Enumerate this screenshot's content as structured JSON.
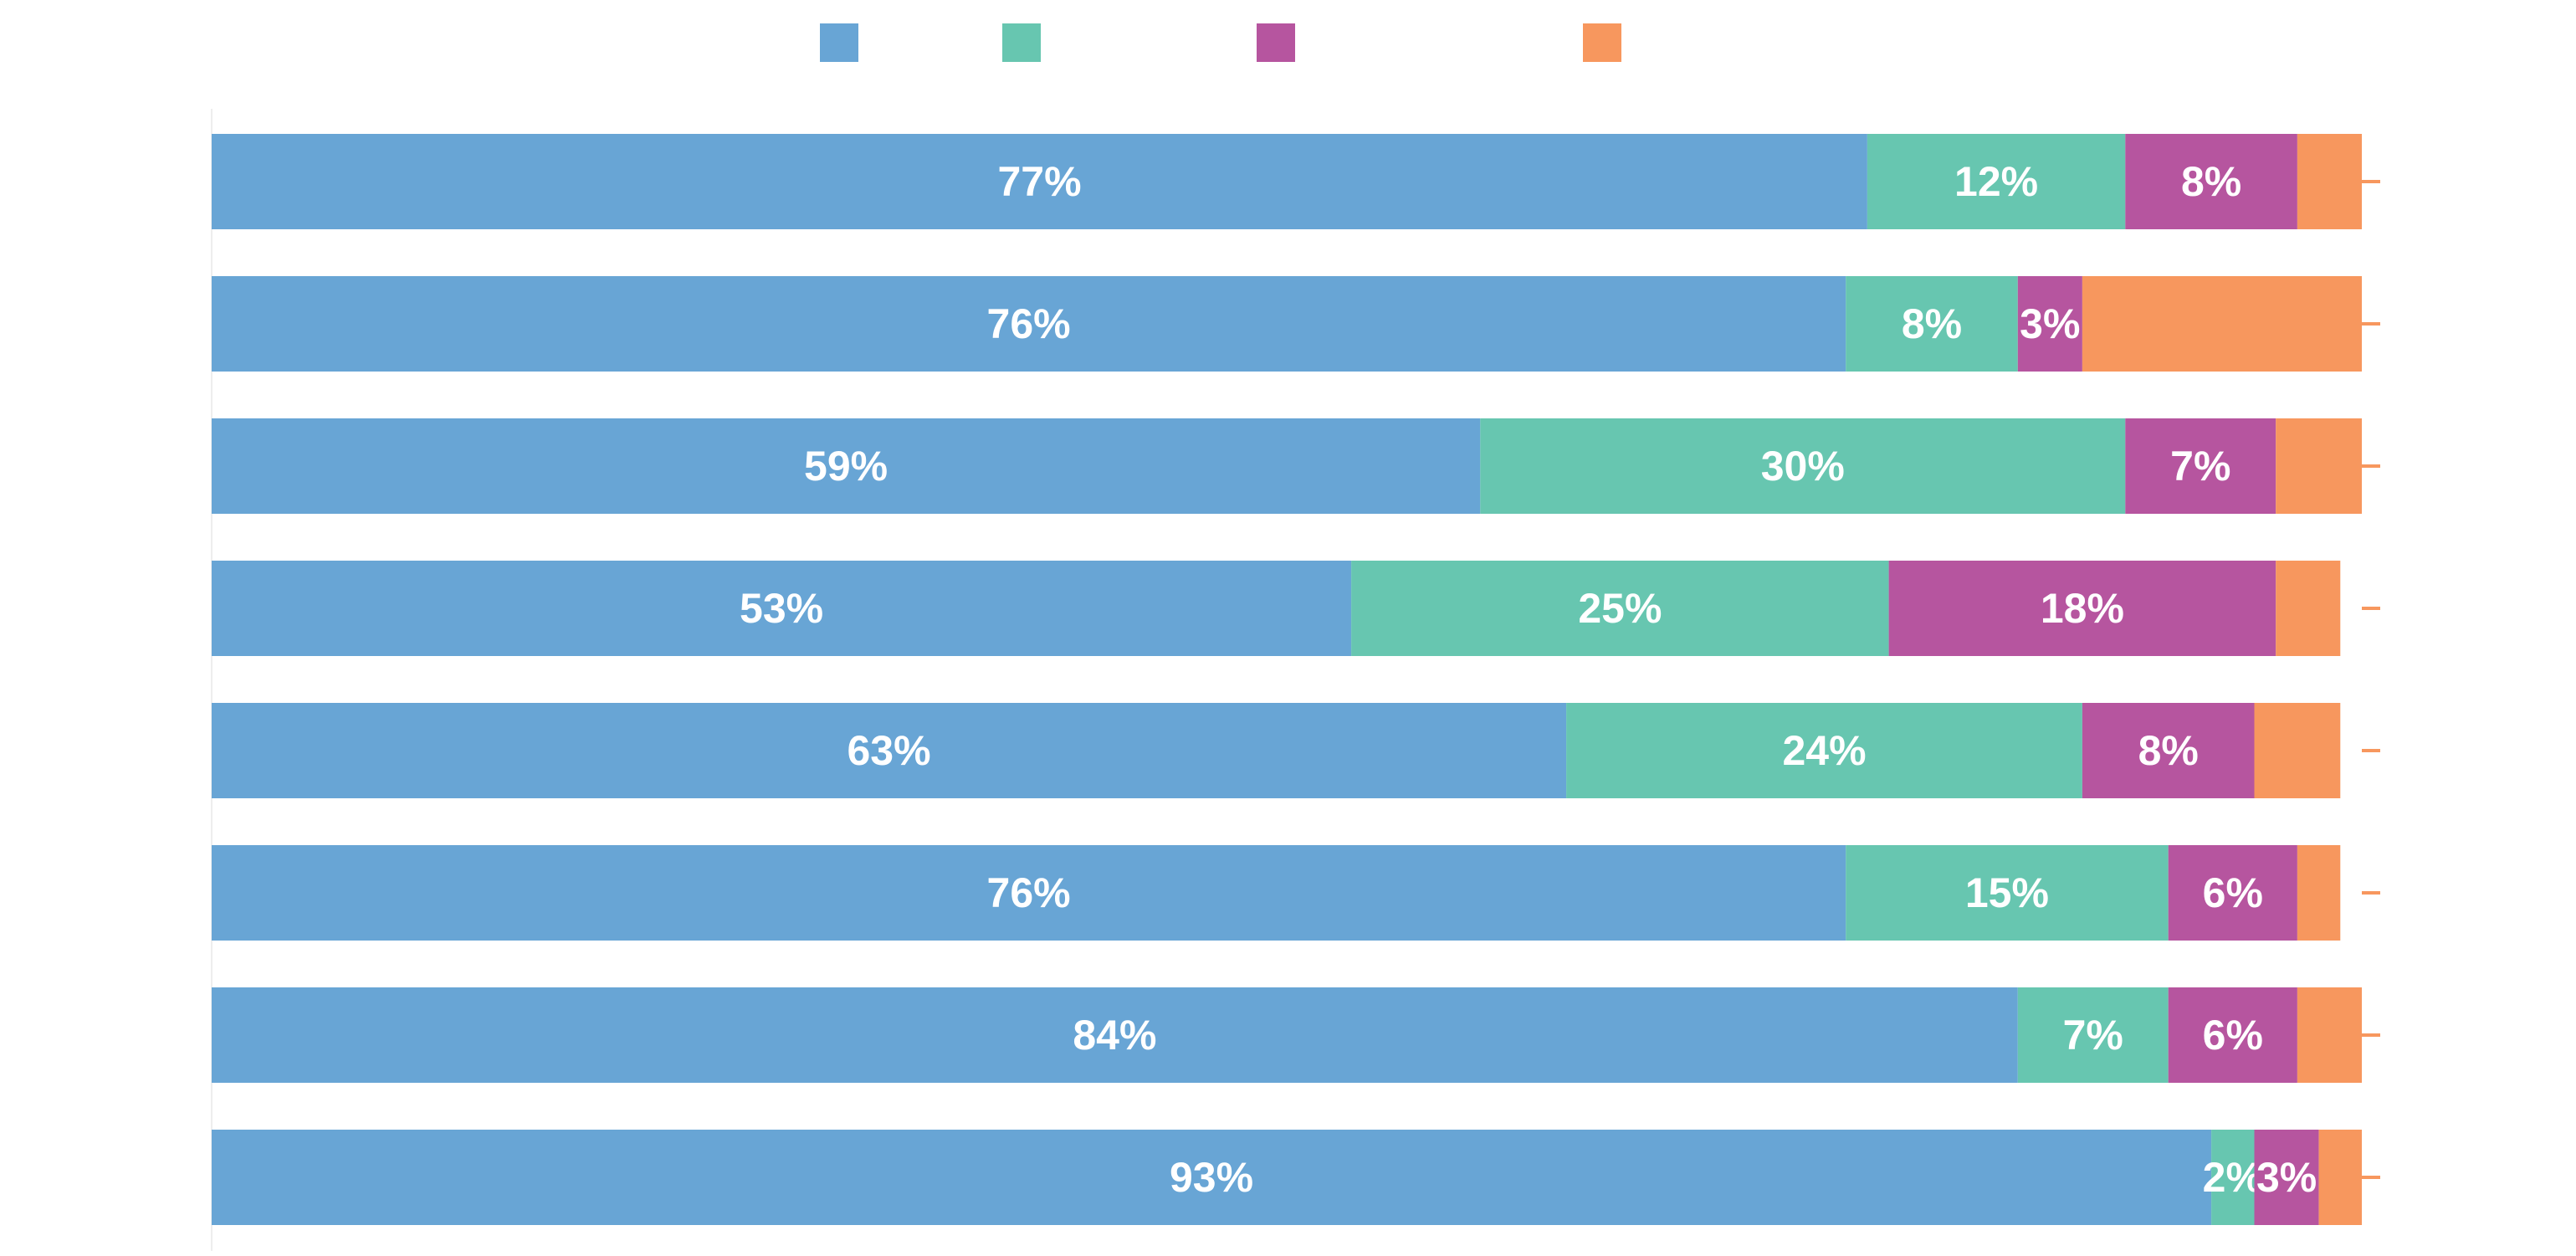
{
  "chart_data": {
    "type": "bar",
    "orientation": "horizontal",
    "stacked": true,
    "percent": true,
    "legend_position": "top",
    "grid": false,
    "xlim": [
      0,
      100
    ],
    "categories": [
      "",
      "",
      "",
      "",
      "",
      "",
      "",
      ""
    ],
    "series": [
      {
        "color": "#68a5d5",
        "values": [
          77,
          76,
          59,
          53,
          63,
          76,
          84,
          93
        ]
      },
      {
        "color": "#67c6b0",
        "values": [
          12,
          8,
          30,
          25,
          24,
          15,
          7,
          2
        ]
      },
      {
        "color": "#b6559f",
        "values": [
          8,
          3,
          7,
          18,
          8,
          6,
          6,
          3
        ]
      },
      {
        "color": "#f7975e",
        "values": [
          3,
          13,
          4,
          3,
          4,
          2,
          3,
          2
        ]
      }
    ],
    "data_labels": [
      [
        "77%",
        "76%",
        "59%",
        "53%",
        "63%",
        "76%",
        "84%",
        "93%"
      ],
      [
        "12%",
        "8%",
        "30%",
        "25%",
        "24%",
        "15%",
        "7%",
        "2%"
      ],
      [
        "8%",
        "3%",
        "7%",
        "18%",
        "8%",
        "6%",
        "6%",
        "3%"
      ],
      [
        "",
        "",
        "",
        "",
        "",
        "",
        "",
        ""
      ]
    ]
  }
}
